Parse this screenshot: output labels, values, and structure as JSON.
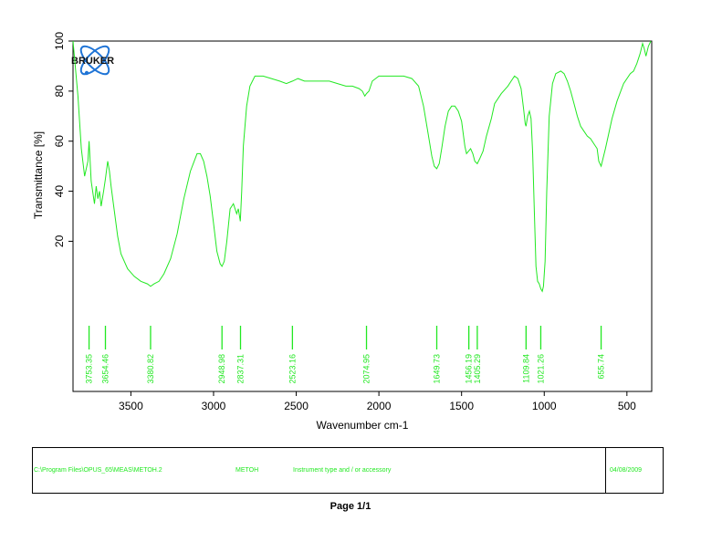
{
  "chart_data": {
    "type": "line",
    "title": "",
    "xlabel": "Wavenumber cm-1",
    "ylabel": "Transmittance [%]",
    "xlim": [
      3850,
      350
    ],
    "ylim": [
      -40,
      100
    ],
    "x_ticks": [
      3500,
      3000,
      2500,
      2000,
      1500,
      1000,
      500
    ],
    "y_ticks": [
      20,
      40,
      60,
      80,
      100
    ],
    "grid": false,
    "line_color": "#22e822",
    "series": [
      {
        "x": [
          3850,
          3820,
          3800,
          3780,
          3760,
          3753,
          3740,
          3720,
          3710,
          3700,
          3690,
          3680,
          3665,
          3654,
          3640,
          3630,
          3620,
          3600,
          3580,
          3560,
          3520,
          3480,
          3440,
          3400,
          3381,
          3360,
          3330,
          3300,
          3260,
          3220,
          3180,
          3140,
          3100,
          3080,
          3060,
          3040,
          3020,
          3000,
          2980,
          2960,
          2949,
          2935,
          2920,
          2900,
          2880,
          2860,
          2850,
          2838,
          2830,
          2820,
          2800,
          2780,
          2750,
          2700,
          2650,
          2600,
          2560,
          2523,
          2490,
          2450,
          2400,
          2350,
          2300,
          2250,
          2200,
          2160,
          2120,
          2100,
          2085,
          2075,
          2060,
          2040,
          2000,
          1950,
          1900,
          1850,
          1800,
          1760,
          1730,
          1700,
          1680,
          1665,
          1650,
          1635,
          1620,
          1600,
          1580,
          1560,
          1540,
          1520,
          1500,
          1480,
          1470,
          1458,
          1445,
          1432,
          1420,
          1405,
          1390,
          1370,
          1350,
          1320,
          1300,
          1260,
          1220,
          1200,
          1180,
          1160,
          1140,
          1125,
          1115,
          1110,
          1100,
          1090,
          1080,
          1070,
          1060,
          1050,
          1040,
          1030,
          1021,
          1012,
          1005,
          995,
          985,
          970,
          950,
          930,
          900,
          880,
          860,
          840,
          820,
          800,
          780,
          760,
          740,
          720,
          700,
          680,
          670,
          656,
          645,
          630,
          610,
          590,
          560,
          520,
          480,
          460,
          440,
          420,
          405,
          395,
          385,
          370,
          355
        ],
        "y": [
          100,
          78,
          57,
          46,
          52,
          60,
          44,
          35,
          42,
          37,
          40,
          34,
          40,
          45,
          52,
          48,
          42,
          32,
          22,
          15,
          9,
          6,
          4,
          3,
          2,
          3,
          4,
          7,
          13,
          23,
          37,
          48,
          55,
          55,
          52,
          46,
          38,
          27,
          16,
          11,
          10,
          12,
          20,
          33,
          35,
          31,
          33,
          28,
          40,
          58,
          74,
          82,
          86,
          86,
          85,
          84,
          83,
          84,
          85,
          84,
          84,
          84,
          84,
          83,
          82,
          82,
          81,
          80,
          78,
          79,
          80,
          84,
          86,
          86,
          86,
          86,
          85,
          82,
          74,
          62,
          54,
          50,
          49,
          51,
          57,
          66,
          72,
          74,
          74,
          72,
          68,
          58,
          55,
          56,
          57,
          55,
          52,
          51,
          53,
          56,
          62,
          69,
          75,
          79,
          82,
          84,
          86,
          85,
          81,
          73,
          67,
          66,
          70,
          72,
          69,
          55,
          32,
          10,
          4,
          3,
          1,
          0,
          2,
          12,
          40,
          70,
          83,
          87,
          88,
          87,
          84,
          80,
          75,
          70,
          66,
          64,
          62,
          61,
          59,
          57,
          52,
          50,
          53,
          57,
          63,
          69,
          76,
          83,
          87,
          88,
          91,
          95,
          99,
          97,
          94,
          98,
          100
        ]
      }
    ],
    "peaks": [
      {
        "x": 3753,
        "label": "3753.35"
      },
      {
        "x": 3654,
        "label": "3654.46"
      },
      {
        "x": 3381,
        "label": "3380.82"
      },
      {
        "x": 2949,
        "label": "2948.98"
      },
      {
        "x": 2837,
        "label": "2837.31"
      },
      {
        "x": 2523,
        "label": "2523.16"
      },
      {
        "x": 2075,
        "label": "2074.95"
      },
      {
        "x": 1650,
        "label": "1649.73"
      },
      {
        "x": 1456,
        "label": "1456.19"
      },
      {
        "x": 1405,
        "label": "1405.29"
      },
      {
        "x": 1110,
        "label": "1109.84"
      },
      {
        "x": 1021,
        "label": "1021.26"
      },
      {
        "x": 656,
        "label": "655.74"
      }
    ]
  },
  "logo": {
    "text": "BRUKER"
  },
  "info": {
    "path": "C:\\Program Files\\OPUS_65\\MEAS\\METOH.2",
    "sample": "METOH",
    "instrument": "Instrument type and / or accessory",
    "date": "04/08/2009"
  },
  "page": {
    "label": "Page 1/1"
  }
}
